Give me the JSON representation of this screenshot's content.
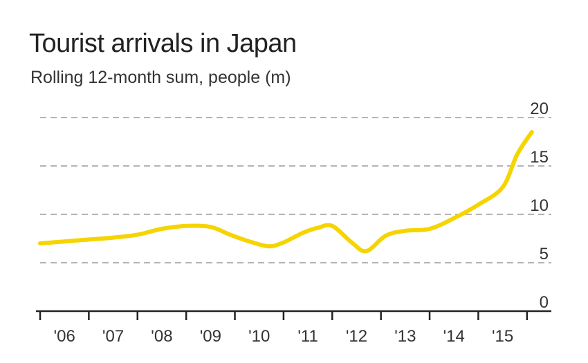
{
  "title": "Tourist arrivals in Japan",
  "subtitle": "Rolling 12-month sum, people (m)",
  "chart_data": {
    "type": "line",
    "title": "Tourist arrivals in Japan",
    "subtitle": "Rolling 12-month sum, people (m)",
    "xlabel": "",
    "ylabel": "",
    "ylim": [
      0,
      20
    ],
    "yticks": [
      "0",
      "5",
      "10",
      "15",
      "20"
    ],
    "xlim": [
      2005.5,
      2016.0
    ],
    "xtick_labels": [
      "'06",
      "'07",
      "'08",
      "'09",
      "'10",
      "'11",
      "'12",
      "'13",
      "'14",
      "'15"
    ],
    "xtick_positions": [
      2006,
      2007,
      2008,
      2009,
      2010,
      2011,
      2012,
      2013,
      2014,
      2015
    ],
    "grid": true,
    "line_color": "#F5D400",
    "series": [
      {
        "x": [
          2005.5,
          2006.0,
          2006.5,
          2007.0,
          2007.5,
          2008.0,
          2008.5,
          2009.0,
          2009.4,
          2009.8,
          2010.2,
          2010.5,
          2010.9,
          2011.2,
          2011.5,
          2011.9,
          2012.2,
          2012.6,
          2013.0,
          2013.5,
          2014.0,
          2014.5,
          2015.0,
          2015.3,
          2015.6
        ],
        "y": [
          7.0,
          7.2,
          7.4,
          7.6,
          7.9,
          8.5,
          8.8,
          8.7,
          7.9,
          7.2,
          6.7,
          7.1,
          8.1,
          8.6,
          8.8,
          7.1,
          6.2,
          7.8,
          8.3,
          8.5,
          9.6,
          11.0,
          12.8,
          16.2,
          18.5
        ]
      }
    ]
  }
}
